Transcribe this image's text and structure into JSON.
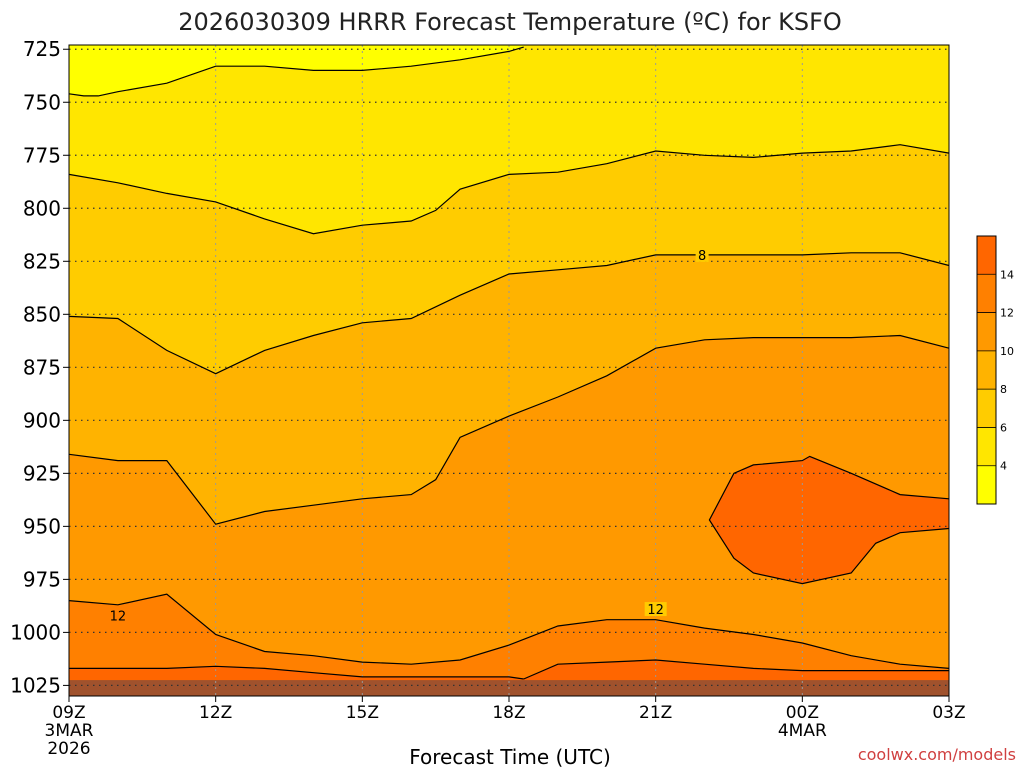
{
  "chart_data": {
    "type": "contour",
    "title": "2026030309 HRRR Forecast Temperature (ºC) for KSFO",
    "xlabel": "Forecast Time (UTC)",
    "ylabel": "",
    "credit": "coolwx.com/models",
    "y_axis": {
      "scale": "pressure (hPa), inverted",
      "ylim": [
        1030,
        723
      ],
      "ticks": [
        725,
        750,
        775,
        800,
        825,
        850,
        875,
        900,
        925,
        950,
        975,
        1000,
        1025
      ]
    },
    "x_axis": {
      "xlim_hours": [
        0,
        18
      ],
      "ticks": [
        {
          "hour": 0,
          "label": "09Z",
          "sub1": "3MAR",
          "sub2": "2026"
        },
        {
          "hour": 3,
          "label": "12Z",
          "sub1": "",
          "sub2": ""
        },
        {
          "hour": 6,
          "label": "15Z",
          "sub1": "",
          "sub2": ""
        },
        {
          "hour": 9,
          "label": "18Z",
          "sub1": "",
          "sub2": ""
        },
        {
          "hour": 12,
          "label": "21Z",
          "sub1": "",
          "sub2": ""
        },
        {
          "hour": 15,
          "label": "00Z",
          "sub1": "4MAR",
          "sub2": ""
        },
        {
          "hour": 18,
          "label": "03Z",
          "sub1": "",
          "sub2": ""
        }
      ]
    },
    "grid": true,
    "colorbar": {
      "placement": "right",
      "levels": [
        2,
        4,
        6,
        8,
        10,
        12,
        14,
        16
      ],
      "colors": [
        "#ffff00",
        "#ffe600",
        "#ffcc00",
        "#ffb300",
        "#ff9900",
        "#ff8000",
        "#ff6600"
      ],
      "labels": [
        "4",
        "6",
        "8",
        "10",
        "12",
        "14"
      ]
    },
    "band_colors": {
      "lt4": "#ffff00",
      "4to6": "#ffe600",
      "6to8": "#ffcc00",
      "8to10": "#ffb300",
      "10to12": "#ff9900",
      "12to14": "#ff8000",
      "14to16": "#ff6600",
      "ground": "#a0522d"
    },
    "contours": [
      {
        "level": 4,
        "points": [
          [
            0,
            746
          ],
          [
            0.3,
            747
          ],
          [
            0.6,
            747
          ],
          [
            1,
            745
          ],
          [
            2,
            741
          ],
          [
            3,
            733
          ],
          [
            4,
            733
          ],
          [
            5,
            735
          ],
          [
            6,
            735
          ],
          [
            7,
            733
          ],
          [
            8,
            730
          ],
          [
            9,
            726
          ],
          [
            9.3,
            724
          ]
        ]
      },
      {
        "level": 6,
        "points": [
          [
            0,
            784
          ],
          [
            1,
            788
          ],
          [
            2,
            793
          ],
          [
            3,
            797
          ],
          [
            4,
            805
          ],
          [
            5,
            812
          ],
          [
            6,
            808
          ],
          [
            7,
            806
          ],
          [
            7.5,
            801
          ],
          [
            8,
            791
          ],
          [
            9,
            784
          ],
          [
            10,
            783
          ],
          [
            11,
            779
          ],
          [
            12,
            773
          ],
          [
            13,
            775
          ],
          [
            14,
            776
          ],
          [
            15,
            774
          ],
          [
            16,
            773
          ],
          [
            17,
            770
          ],
          [
            18,
            774
          ]
        ]
      },
      {
        "level": 8,
        "points": [
          [
            0,
            851
          ],
          [
            1,
            852
          ],
          [
            2,
            867
          ],
          [
            3,
            878
          ],
          [
            4,
            867
          ],
          [
            5,
            860
          ],
          [
            6,
            854
          ],
          [
            7,
            852
          ],
          [
            8,
            841
          ],
          [
            9,
            831
          ],
          [
            10,
            829
          ],
          [
            11,
            827
          ],
          [
            12,
            822
          ],
          [
            13,
            822
          ],
          [
            14,
            822
          ],
          [
            15,
            822
          ],
          [
            16,
            821
          ],
          [
            17,
            821
          ],
          [
            18,
            827
          ]
        ]
      },
      {
        "level": 10,
        "points": [
          [
            0,
            916
          ],
          [
            1,
            919
          ],
          [
            2,
            919
          ],
          [
            3,
            949
          ],
          [
            4,
            943
          ],
          [
            5,
            940
          ],
          [
            6,
            937
          ],
          [
            7,
            935
          ],
          [
            7.5,
            928
          ],
          [
            8,
            908
          ],
          [
            9,
            898
          ],
          [
            10,
            889
          ],
          [
            11,
            879
          ],
          [
            12,
            866
          ],
          [
            13,
            862
          ],
          [
            14,
            861
          ],
          [
            15,
            861
          ],
          [
            16,
            861
          ],
          [
            17,
            860
          ],
          [
            18,
            866
          ]
        ]
      },
      {
        "level": 12,
        "points": [
          [
            0,
            985
          ],
          [
            1,
            987
          ],
          [
            2,
            982
          ],
          [
            3,
            1001
          ],
          [
            4,
            1009
          ],
          [
            5,
            1011
          ],
          [
            6,
            1014
          ],
          [
            7,
            1015
          ],
          [
            8,
            1013
          ],
          [
            9,
            1006
          ],
          [
            10,
            997
          ],
          [
            11,
            994
          ],
          [
            12,
            994
          ],
          [
            13,
            998
          ],
          [
            14,
            1001
          ],
          [
            15,
            1005
          ],
          [
            16,
            1011
          ],
          [
            17,
            1015
          ],
          [
            18,
            1017
          ]
        ]
      },
      {
        "level": 14,
        "points": [
          [
            0,
            1017
          ],
          [
            1,
            1017
          ],
          [
            2,
            1017
          ],
          [
            3,
            1016
          ],
          [
            4,
            1017
          ],
          [
            5,
            1019
          ],
          [
            6,
            1021
          ],
          [
            7,
            1021
          ],
          [
            8,
            1021
          ],
          [
            9,
            1021
          ],
          [
            9.3,
            1022
          ]
        ]
      },
      {
        "level": 14,
        "points": [
          [
            9.3,
            1022
          ],
          [
            10,
            1015
          ],
          [
            11,
            1014
          ],
          [
            12,
            1013
          ],
          [
            13,
            1015
          ],
          [
            14,
            1017
          ],
          [
            15,
            1018
          ],
          [
            16,
            1018
          ],
          [
            17,
            1018
          ],
          [
            18,
            1018
          ]
        ]
      },
      {
        "level": 14,
        "points": [
          [
            18,
            951
          ],
          [
            17,
            953
          ],
          [
            16.5,
            958
          ],
          [
            16,
            972
          ],
          [
            15,
            977
          ],
          [
            14,
            972
          ],
          [
            13.6,
            965
          ],
          [
            13.1,
            947
          ],
          [
            13.6,
            925
          ],
          [
            14,
            921
          ],
          [
            15,
            919
          ],
          [
            15.15,
            917
          ],
          [
            16,
            925
          ],
          [
            17,
            935
          ],
          [
            18,
            937
          ]
        ]
      }
    ],
    "labels": [
      {
        "text": "8",
        "hour": 12.95,
        "p": 822
      },
      {
        "text": "12",
        "hour": 1.0,
        "p": 992
      },
      {
        "text": "12",
        "hour": 12.0,
        "p": 989
      }
    ]
  }
}
